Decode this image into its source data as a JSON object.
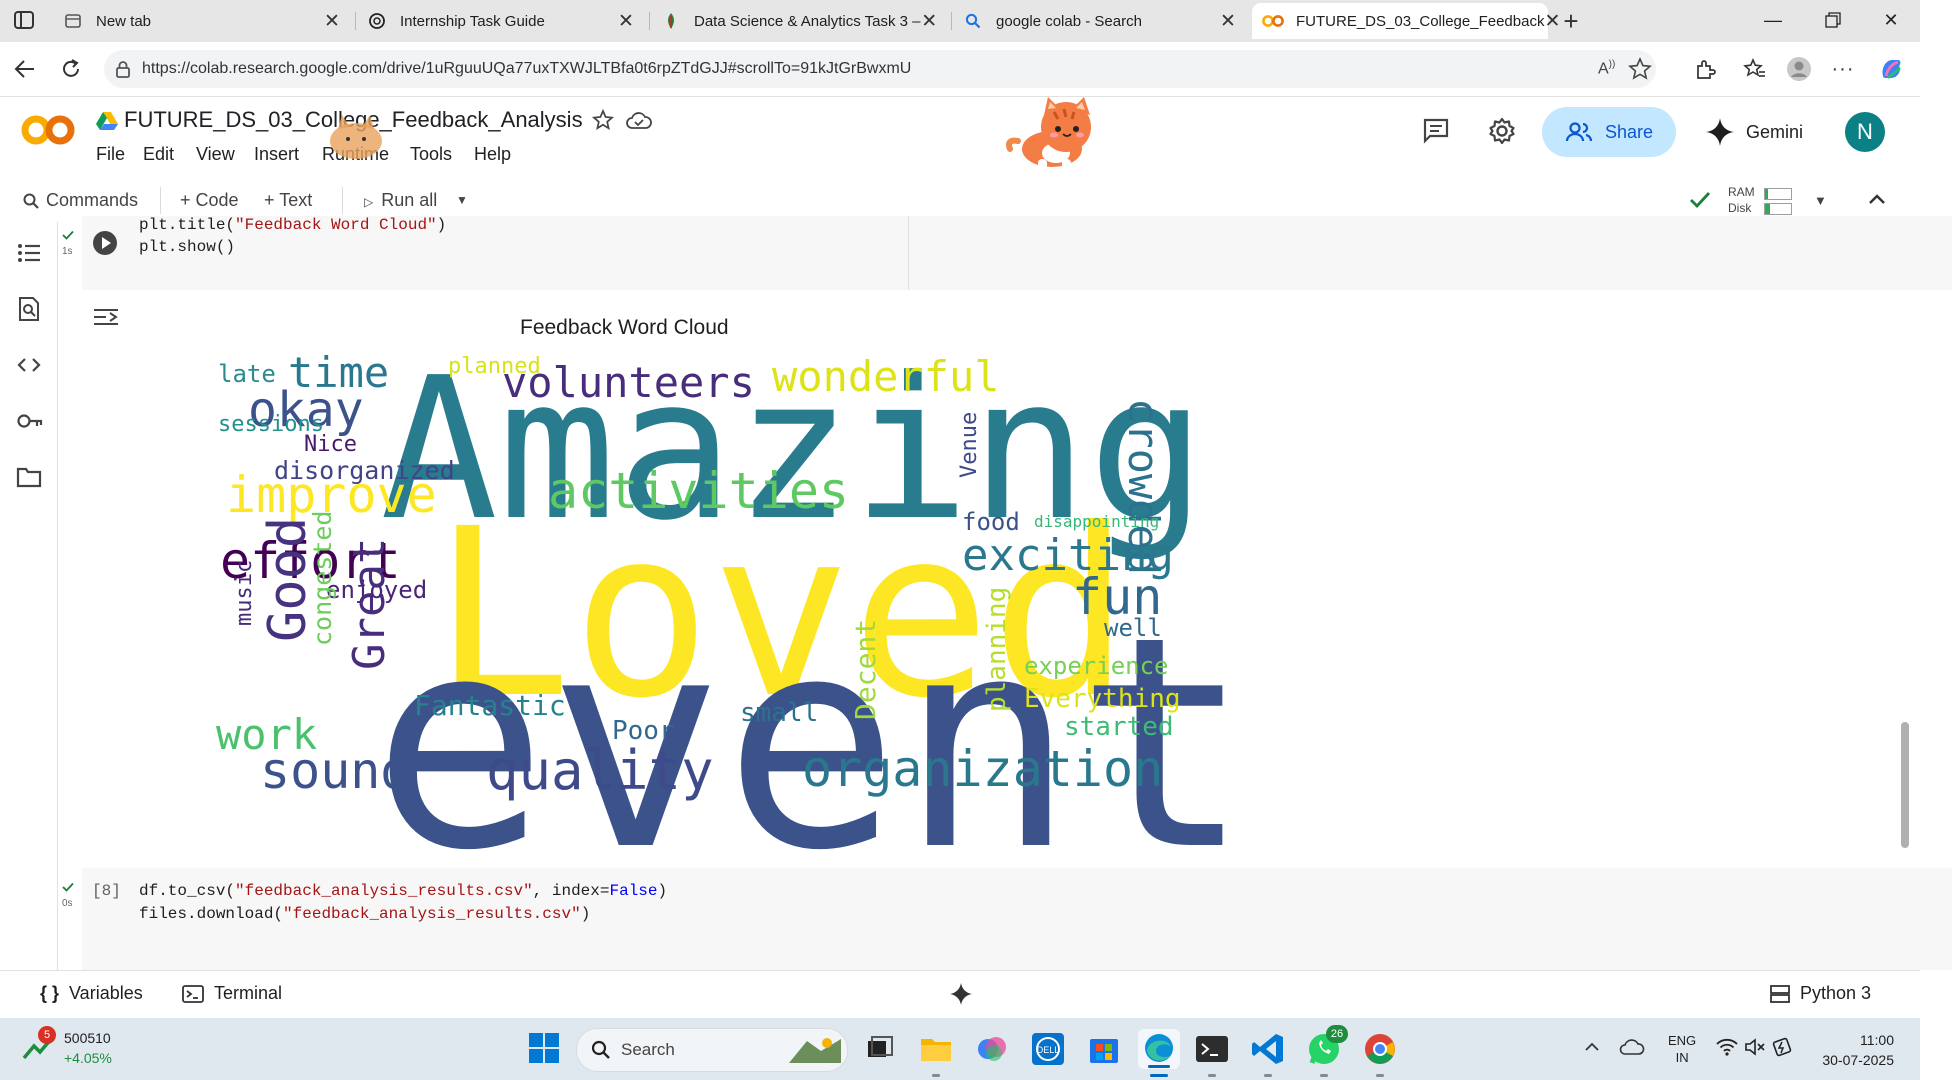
{
  "browser": {
    "tabs": [
      {
        "title": "New tab",
        "icon": "new-tab-icon"
      },
      {
        "title": "Internship Task Guide",
        "icon": "chatgpt-icon"
      },
      {
        "title": "Data Science & Analytics Task 3 –",
        "icon": "dataset-icon"
      },
      {
        "title": "google colab - Search",
        "icon": "search-icon"
      },
      {
        "title": "FUTURE_DS_03_College_Feedback",
        "icon": "colab-icon"
      }
    ],
    "url": "https://colab.research.google.com/drive/1uRguuUQa77uxTXWJLTBfa0t6rpZTdGJJ#scrollTo=91kJtGrBwxmU"
  },
  "colab": {
    "doc_title": "FUTURE_DS_03_College_Feedback_Analysis",
    "menu": [
      "File",
      "Edit",
      "View",
      "Insert",
      "Runtime",
      "Tools",
      "Help"
    ],
    "share_label": "Share",
    "gemini_label": "Gemini",
    "avatar_letter": "N"
  },
  "toolbar": {
    "commands": "Commands",
    "code": "+ Code",
    "text": "+ Text",
    "run_all": "Run all",
    "ram": "RAM",
    "disk": "Disk"
  },
  "cells": {
    "cell1": {
      "exec_time": "1s",
      "line1": [
        "plt.title(",
        "\"Feedback Word Cloud\"",
        ")"
      ],
      "line2": "plt.show()"
    },
    "output_title": "Feedback Word Cloud",
    "cell2": {
      "exec_count": "[8]",
      "exec_time": "0s",
      "line1": [
        "df.to_csv(",
        "\"feedback_analysis_results.csv\"",
        ", index=",
        "False",
        ")"
      ],
      "line2": [
        "files.download(",
        "\"feedback_analysis_results.csv\"",
        ")"
      ]
    }
  },
  "wordcloud": [
    {
      "text": "Amazing",
      "color": "#287c8e"
    },
    {
      "text": "Loved",
      "color": "#fde725"
    },
    {
      "text": "event",
      "color": "#3b528b"
    },
    {
      "text": "volunteers",
      "color": "#472d7b"
    },
    {
      "text": "wonderful",
      "color": "#dde318"
    },
    {
      "text": "crowded",
      "color": "#2c728e"
    },
    {
      "text": "time",
      "color": "#2a788e"
    },
    {
      "text": "okay",
      "color": "#3b528b"
    },
    {
      "text": "late",
      "color": "#2c8b8c"
    },
    {
      "text": "planned",
      "color": "#d8e219"
    },
    {
      "text": "sessions",
      "color": "#21918c"
    },
    {
      "text": "Nice",
      "color": "#481a6c"
    },
    {
      "text": "disorganized",
      "color": "#414487"
    },
    {
      "text": "improve",
      "color": "#fde725"
    },
    {
      "text": "activities",
      "color": "#5ec962"
    },
    {
      "text": "Venue",
      "color": "#3e4989"
    },
    {
      "text": "food",
      "color": "#3b528b"
    },
    {
      "text": "disappointing",
      "color": "#35b779"
    },
    {
      "text": "effort",
      "color": "#440154"
    },
    {
      "text": "exciting",
      "color": "#2a788e"
    },
    {
      "text": "fun",
      "color": "#31688e"
    },
    {
      "text": "enjoyed",
      "color": "#482576"
    },
    {
      "text": "well",
      "color": "#31688e"
    },
    {
      "text": "music",
      "color": "#472c7a"
    },
    {
      "text": "Good",
      "color": "#46327e"
    },
    {
      "text": "congested",
      "color": "#6ccd5a"
    },
    {
      "text": "Great",
      "color": "#472d7b"
    },
    {
      "text": "experience",
      "color": "#75d054"
    },
    {
      "text": "Everything",
      "color": "#dde318"
    },
    {
      "text": "work",
      "color": "#4ac16d"
    },
    {
      "text": "Fantastic",
      "color": "#26828e"
    },
    {
      "text": "small",
      "color": "#2c728e"
    },
    {
      "text": "Decent",
      "color": "#9fda3a"
    },
    {
      "text": "planning",
      "color": "#b5de2b"
    },
    {
      "text": "started",
      "color": "#3dbc74"
    },
    {
      "text": "Poor",
      "color": "#31688e"
    },
    {
      "text": "sound",
      "color": "#3b528b"
    },
    {
      "text": "quality",
      "color": "#3e4a89"
    },
    {
      "text": "organization",
      "color": "#2a788e"
    }
  ],
  "statusbar": {
    "variables": "Variables",
    "terminal": "Terminal",
    "runtime": "Python 3"
  },
  "taskbar": {
    "stock_badge": "5",
    "stock_value": "500510",
    "stock_change": "+4.05%",
    "search_placeholder": "Search",
    "whatsapp_badge": "26",
    "lang_line1": "ENG",
    "lang_line2": "IN",
    "time": "11:00",
    "date": "30-07-2025"
  }
}
